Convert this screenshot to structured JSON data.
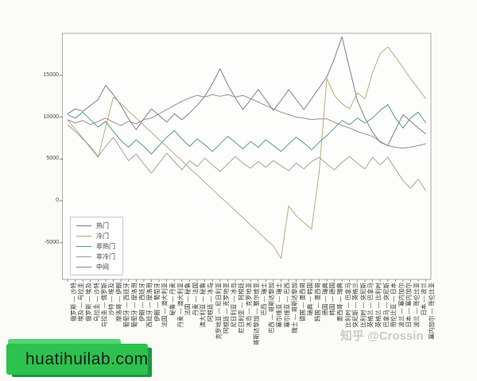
{
  "watermarks": {
    "zhihu": "知乎 @Crossin",
    "site": "huatihuilab.com"
  },
  "colors": {
    "badge_green": "#2cc24d",
    "badge_green_dark": "#18993c",
    "badge_green_light": "#55d377",
    "watermark_gray": "#c3c3c3",
    "axis_spine": "#aaaaaa",
    "plot_background": "#fdfdfb"
  },
  "chart_data": {
    "type": "line",
    "title": "",
    "xlabel": "",
    "ylabel": "",
    "grid": false,
    "legend_position": "lower left",
    "ylim": [
      -9400,
      20100
    ],
    "yticks": [
      "-5000",
      "0",
      "5000",
      "10000",
      "15000"
    ],
    "ytick_values": [
      -5000,
      0,
      5000,
      10000,
      15000
    ],
    "categories": [
      "俄罗斯 — 沙特",
      "埃及 — 乌拉圭",
      "俄罗斯 — 埃及",
      "乌拉圭 — 沙特",
      "乌拉圭 — 俄罗斯",
      "沙特 — 埃及",
      "摩洛哥 — 伊朗",
      "葡萄牙 — 西班牙",
      "葡萄牙 — 摩洛哥",
      "伊朗 — 西班牙",
      "西班牙 — 摩洛哥",
      "伊朗 — 葡萄牙",
      "法国 — 澳大利亚",
      "秘鲁 — 丹麦",
      "丹麦 — 澳大利亚",
      "法国 — 秘鲁",
      "丹麦 — 法国",
      "澳大利亚 — 秘鲁",
      "阿根廷 — 冰岛",
      "克罗地亚 — 尼日利亚",
      "阿根廷 — 克罗地亚",
      "尼日利亚 — 冰岛",
      "尼日利亚 — 阿根廷",
      "冰岛 — 克罗地亚",
      "哥斯达黎加 — 塞尔维亚",
      "巴西 — 瑞士",
      "巴西 — 哥斯达黎加",
      "塞尔维亚 — 瑞士",
      "塞尔维亚 — 巴西",
      "瑞士 — 哥斯达黎加",
      "德国 — 墨西哥",
      "瑞典 — 韩国",
      "韩国 — 墨西哥",
      "德国 — 瑞典",
      "韩国 — 德国",
      "墨西哥 — 瑞典",
      "比利时 — 巴拿马",
      "突尼斯 — 英格兰",
      "比利时 — 突尼斯",
      "英格兰 — 巴拿马",
      "英格兰 — 比利时",
      "巴拿马 — 突尼斯",
      "哥伦比亚 — 日本",
      "波兰 — 塞内加尔",
      "日本 — 塞内加尔",
      "波兰 — 哥伦比亚",
      "日本 — 波兰",
      "塞内加尔 — 哥伦比亚"
    ],
    "series": [
      {
        "name": "热门",
        "color": "#757a8c",
        "values": [
          10400,
          11000,
          10700,
          11400,
          12100,
          13800,
          12700,
          11400,
          9800,
          8500,
          9800,
          11000,
          10200,
          9400,
          10400,
          9700,
          10500,
          11400,
          12500,
          14000,
          15800,
          13900,
          12300,
          10900,
          12100,
          13300,
          12100,
          10800,
          12000,
          13300,
          12100,
          10900,
          12200,
          13500,
          14800,
          17000,
          19600,
          15800,
          12000,
          9900,
          8200,
          7000,
          6600,
          8500,
          10300,
          9500,
          8700,
          8000
        ]
      },
      {
        "name": "冷门",
        "color": "#b7a878",
        "values": [
          9700,
          8600,
          7500,
          6300,
          5200,
          8800,
          12400,
          11600,
          10700,
          9900,
          9000,
          8200,
          7300,
          6500,
          5600,
          4800,
          3900,
          3100,
          2200,
          1400,
          500,
          -300,
          -1200,
          -2000,
          -2900,
          -3700,
          -4600,
          -5400,
          -6900,
          -600,
          -1800,
          -2600,
          -3400,
          3500,
          14600,
          12600,
          11600,
          11000,
          12900,
          12200,
          15300,
          17600,
          18400,
          17200,
          15900,
          14600,
          13400,
          12200
        ]
      },
      {
        "name": "非热门",
        "color": "#4f948e",
        "values": [
          10300,
          9900,
          10600,
          9700,
          8800,
          9500,
          8300,
          7200,
          6400,
          7300,
          6500,
          5600,
          6600,
          7600,
          8400,
          7400,
          6500,
          7400,
          6700,
          5900,
          6800,
          7700,
          7000,
          6200,
          7100,
          6400,
          7300,
          6600,
          5900,
          6800,
          7600,
          6900,
          6100,
          7000,
          7800,
          8700,
          9600,
          9100,
          9900,
          9300,
          9900,
          10800,
          11500,
          9900,
          8700,
          9900,
          10600,
          9300
        ]
      },
      {
        "name": "非冷门",
        "color": "#9e9e9e",
        "values": [
          9100,
          8300,
          7400,
          6500,
          5300,
          6500,
          7600,
          6200,
          4800,
          5600,
          4400,
          3300,
          4500,
          5700,
          4700,
          3700,
          4800,
          4100,
          5100,
          4300,
          3500,
          4400,
          5300,
          4500,
          3900,
          4700,
          4000,
          4800,
          4200,
          3600,
          4500,
          3800,
          4700,
          5200,
          4400,
          3700,
          4600,
          5300,
          4500,
          3800,
          5200,
          4300,
          5200,
          3800,
          2400,
          1500,
          2600,
          1200
        ]
      },
      {
        "name": "中间",
        "color": "#a07e90",
        "values": [
          9700,
          9300,
          9600,
          9100,
          9500,
          9900,
          9400,
          9000,
          9500,
          9200,
          9700,
          9900,
          10400,
          10900,
          11400,
          11900,
          12300,
          12600,
          12400,
          12700,
          12500,
          12700,
          12400,
          12600,
          12200,
          11800,
          11400,
          11000,
          10600,
          10300,
          10000,
          9900,
          9700,
          9800,
          9800,
          9400,
          9000,
          8700,
          8300,
          8000,
          7700,
          7100,
          6600,
          6400,
          6300,
          6400,
          6600,
          6800
        ]
      }
    ]
  }
}
